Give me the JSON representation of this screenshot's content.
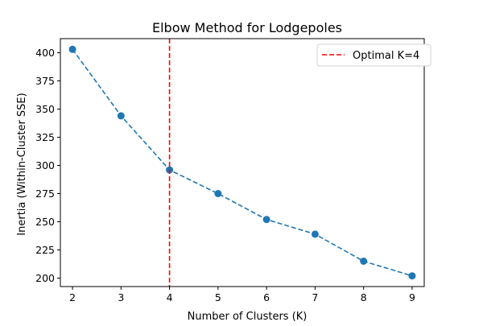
{
  "chart_data": {
    "type": "line",
    "title": "Elbow Method for Lodgepoles",
    "xlabel": "Number of Clusters (K)",
    "ylabel": "Inertia (Within-Cluster SSE)",
    "x": [
      2,
      3,
      4,
      5,
      6,
      7,
      8,
      9
    ],
    "series": [
      {
        "values": [
          403,
          344,
          296,
          275,
          252,
          239,
          215,
          202
        ],
        "color": "#1f77b4",
        "line_style": "dashed",
        "marker": "circle"
      }
    ],
    "xlim": [
      1.75,
      9.25
    ],
    "ylim": [
      192.5,
      412.5
    ],
    "xticks": [
      "2",
      "3",
      "4",
      "5",
      "6",
      "7",
      "8",
      "9"
    ],
    "yticks": [
      "200",
      "225",
      "250",
      "275",
      "300",
      "325",
      "350",
      "375",
      "400"
    ],
    "xtick_values": [
      2,
      3,
      4,
      5,
      6,
      7,
      8,
      9
    ],
    "ytick_values": [
      200,
      225,
      250,
      275,
      300,
      325,
      350,
      375,
      400
    ],
    "reference_line": {
      "orientation": "vertical",
      "x": 4,
      "label": "Optimal K=4",
      "color": "#ff0000",
      "line_style": "dashed"
    },
    "legend": {
      "placement": "upper-right",
      "entries": [
        "Optimal K=4"
      ]
    },
    "grid": false
  }
}
